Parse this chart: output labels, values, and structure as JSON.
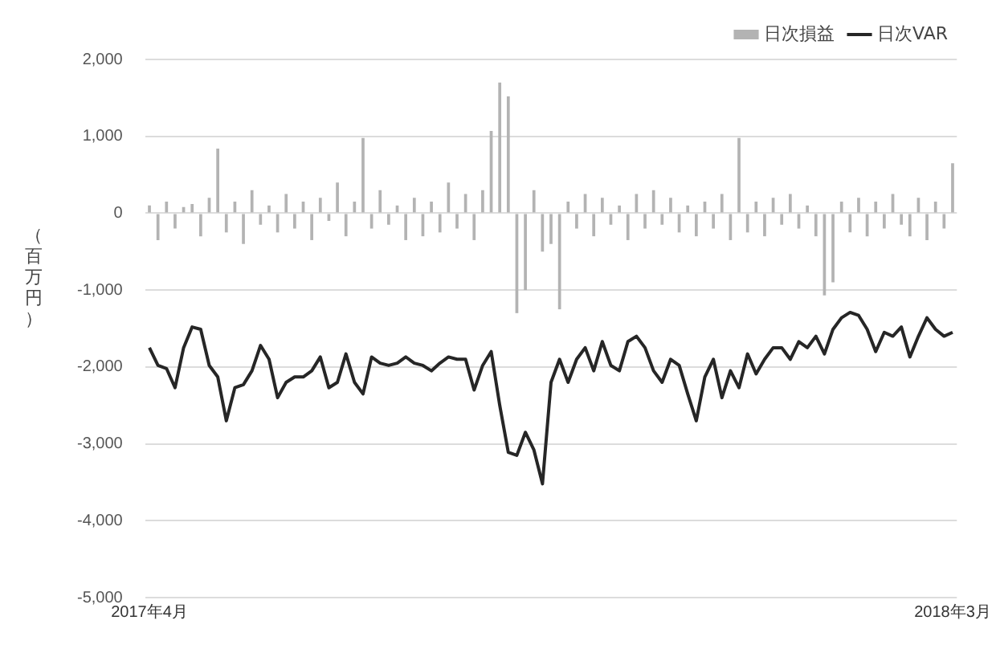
{
  "chart_data": {
    "type": "bar",
    "ylabel": "（百万円）",
    "categories": [
      "2017年4月",
      null,
      null,
      null,
      null,
      null,
      null,
      null,
      null,
      null,
      null,
      null,
      null,
      null,
      null,
      null,
      null,
      null,
      null,
      null,
      null,
      null,
      null,
      null,
      null,
      null,
      null,
      null,
      null,
      null,
      null,
      null,
      null,
      null,
      null,
      null,
      null,
      null,
      null,
      null,
      null,
      null,
      null,
      null,
      null,
      null,
      null,
      null,
      null,
      null,
      null,
      null,
      null,
      null,
      null,
      null,
      null,
      null,
      null,
      null,
      null,
      null,
      null,
      null,
      null,
      null,
      null,
      null,
      null,
      null,
      null,
      null,
      null,
      null,
      null,
      null,
      null,
      null,
      null,
      null,
      null,
      null,
      null,
      null,
      null,
      null,
      null,
      null,
      null,
      null,
      null,
      null,
      null,
      null,
      "2018年3月"
    ],
    "series": [
      {
        "name": "日次損益",
        "type": "bar",
        "color": "#b3b3b3",
        "values": [
          100,
          -350,
          150,
          -200,
          80,
          120,
          -300,
          200,
          840,
          -250,
          150,
          -400,
          300,
          -150,
          100,
          -250,
          250,
          -200,
          150,
          -350,
          200,
          -100,
          400,
          -300,
          150,
          980,
          -200,
          300,
          -150,
          100,
          -350,
          200,
          -300,
          150,
          -250,
          400,
          -200,
          250,
          -350,
          300,
          1070,
          1700,
          1520,
          -1300,
          -1000,
          300,
          -500,
          -400,
          -1250,
          150,
          -200,
          250,
          -300,
          200,
          -150,
          100,
          -350,
          250,
          -200,
          300,
          -150,
          200,
          -250,
          100,
          -300,
          150,
          -200,
          250,
          -350,
          980,
          -250,
          150,
          -300,
          200,
          -150,
          250,
          -200,
          100,
          -300,
          -1070,
          -900,
          150,
          -250,
          200,
          -300,
          150,
          -200,
          250,
          -150,
          -300,
          200,
          -350,
          150,
          -200,
          650
        ]
      },
      {
        "name": "日次VAR",
        "type": "line",
        "color": "#262626",
        "values": [
          -1750,
          -1980,
          -2020,
          -2270,
          -1750,
          -1480,
          -1510,
          -1980,
          -2130,
          -2700,
          -2270,
          -2230,
          -2050,
          -1720,
          -1900,
          -2400,
          -2200,
          -2130,
          -2130,
          -2050,
          -1870,
          -2270,
          -2200,
          -1830,
          -2200,
          -2350,
          -1870,
          -1950,
          -1980,
          -1950,
          -1870,
          -1950,
          -1980,
          -2050,
          -1950,
          -1870,
          -1900,
          -1900,
          -2300,
          -1980,
          -1800,
          -2500,
          -3110,
          -3150,
          -2850,
          -3080,
          -3520,
          -2200,
          -1900,
          -2200,
          -1900,
          -1750,
          -2050,
          -1670,
          -1980,
          -2050,
          -1670,
          -1600,
          -1750,
          -2050,
          -2200,
          -1900,
          -1980,
          -2350,
          -2700,
          -2130,
          -1900,
          -2400,
          -2050,
          -2270,
          -1830,
          -2090,
          -1900,
          -1750,
          -1750,
          -1900,
          -1670,
          -1750,
          -1600,
          -1830,
          -1510,
          -1360,
          -1290,
          -1330,
          -1510,
          -1800,
          -1550,
          -1600,
          -1480,
          -1870,
          -1600,
          -1360,
          -1510,
          -1600,
          -1550
        ]
      }
    ],
    "ylim": [
      -5000,
      2000
    ],
    "yticks": [
      {
        "value": -5000,
        "label": "-5,000"
      },
      {
        "value": -4000,
        "label": "-4,000"
      },
      {
        "value": -3000,
        "label": "-3,000"
      },
      {
        "value": -2000,
        "label": "-2,000"
      },
      {
        "value": -1000,
        "label": "-1,000"
      },
      0,
      {
        "value": 1000,
        "label": "1,000"
      },
      {
        "value": 2000,
        "label": "2,000"
      }
    ],
    "grid": "y",
    "legend": "top right",
    "marker": "none",
    "line_style": "solid"
  }
}
